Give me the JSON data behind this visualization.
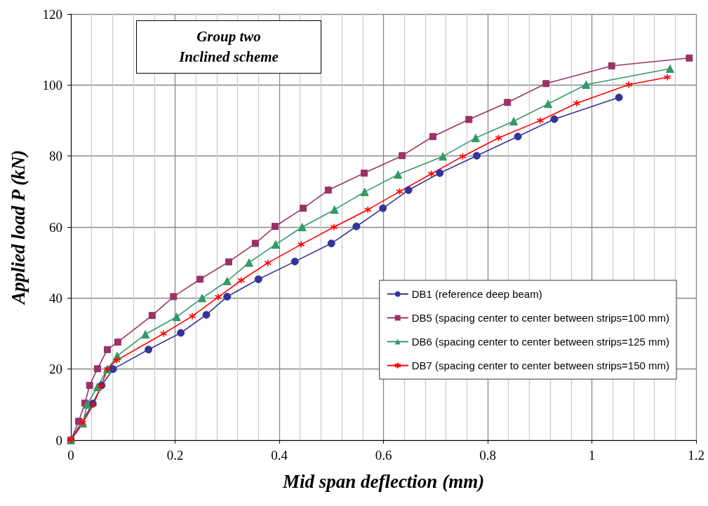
{
  "chart_data": {
    "type": "line",
    "title": "Group two\nInclined scheme",
    "xlabel": "Mid span deflection (mm)",
    "ylabel": "Applied load P (kN)",
    "xlim": [
      0,
      1.2
    ],
    "xticks": [
      0,
      0.2,
      0.4,
      0.6,
      0.8,
      1,
      1.2
    ],
    "ylim": [
      0,
      120
    ],
    "yticks": [
      0,
      20,
      40,
      60,
      80,
      100,
      120
    ],
    "grid": true,
    "legend": "bottom right",
    "line_style": "solid",
    "series": [
      {
        "name": "DB1 (reference deep beam)",
        "color": "#333399",
        "marker": "circle",
        "x": [
          0,
          0.022,
          0.042,
          0.059,
          0.081,
          0.149,
          0.211,
          0.26,
          0.3,
          0.36,
          0.43,
          0.5,
          0.548,
          0.599,
          0.648,
          0.708,
          0.779,
          0.858,
          0.928,
          1.052
        ],
        "values": [
          0,
          null,
          10.3,
          15.4,
          20,
          25.5,
          30.2,
          35.3,
          40.4,
          45.3,
          50.3,
          55.4,
          60.2,
          65.3,
          70.4,
          75.2,
          80.1,
          85.5,
          90.4,
          96.5
        ]
      },
      {
        "name": "DB5 (spacing center to center between strips=100 mm)",
        "color": "#993366",
        "marker": "square",
        "x": [
          0,
          0.015,
          0.027,
          0.036,
          0.051,
          0.07,
          0.09,
          0.156,
          0.197,
          0.248,
          0.303,
          0.354,
          0.392,
          0.446,
          0.494,
          0.563,
          0.636,
          0.695,
          0.764,
          0.838,
          0.912,
          1.038,
          1.187
        ],
        "values": [
          0,
          5.3,
          10.4,
          15.4,
          20.1,
          25.5,
          27.6,
          35.1,
          40.4,
          45.3,
          50.2,
          55.4,
          60.2,
          65.3,
          70.4,
          75.2,
          80.1,
          85.5,
          90.3,
          95.1,
          100.4,
          105.4,
          107.6
        ]
      },
      {
        "name": "DB6 (spacing center to center between strips=125 mm)",
        "color": "#339966",
        "marker": "triangle",
        "x": [
          0,
          0.023,
          0.031,
          0.051,
          0.07,
          0.089,
          0.143,
          0.203,
          0.252,
          0.3,
          0.342,
          0.393,
          0.444,
          0.506,
          0.564,
          0.628,
          0.714,
          0.777,
          0.85,
          0.916,
          0.989,
          1.15
        ],
        "values": [
          0,
          4.7,
          10,
          15,
          20,
          23.7,
          29.8,
          34.7,
          40,
          44.8,
          50,
          55.1,
          60,
          64.9,
          69.9,
          74.8,
          79.9,
          85.1,
          89.8,
          94.7,
          100.1,
          104.6
        ]
      },
      {
        "name": "DB7 (spacing center to center between strips=150 mm)",
        "color": "#ff0000",
        "marker": "cross",
        "x": [
          0,
          0.023,
          0.043,
          0.058,
          0.07,
          0.088,
          0.178,
          0.233,
          0.283,
          0.327,
          0.378,
          0.442,
          0.505,
          0.57,
          0.631,
          0.692,
          0.752,
          0.821,
          0.901,
          0.971,
          1.071,
          1.145
        ],
        "values": [
          0,
          4.9,
          10,
          15.2,
          20,
          22.5,
          30,
          34.9,
          40.3,
          45,
          49.9,
          55.1,
          60,
          64.9,
          70,
          75,
          79.9,
          85.1,
          90,
          94.9,
          100.1,
          102.2
        ]
      }
    ]
  }
}
